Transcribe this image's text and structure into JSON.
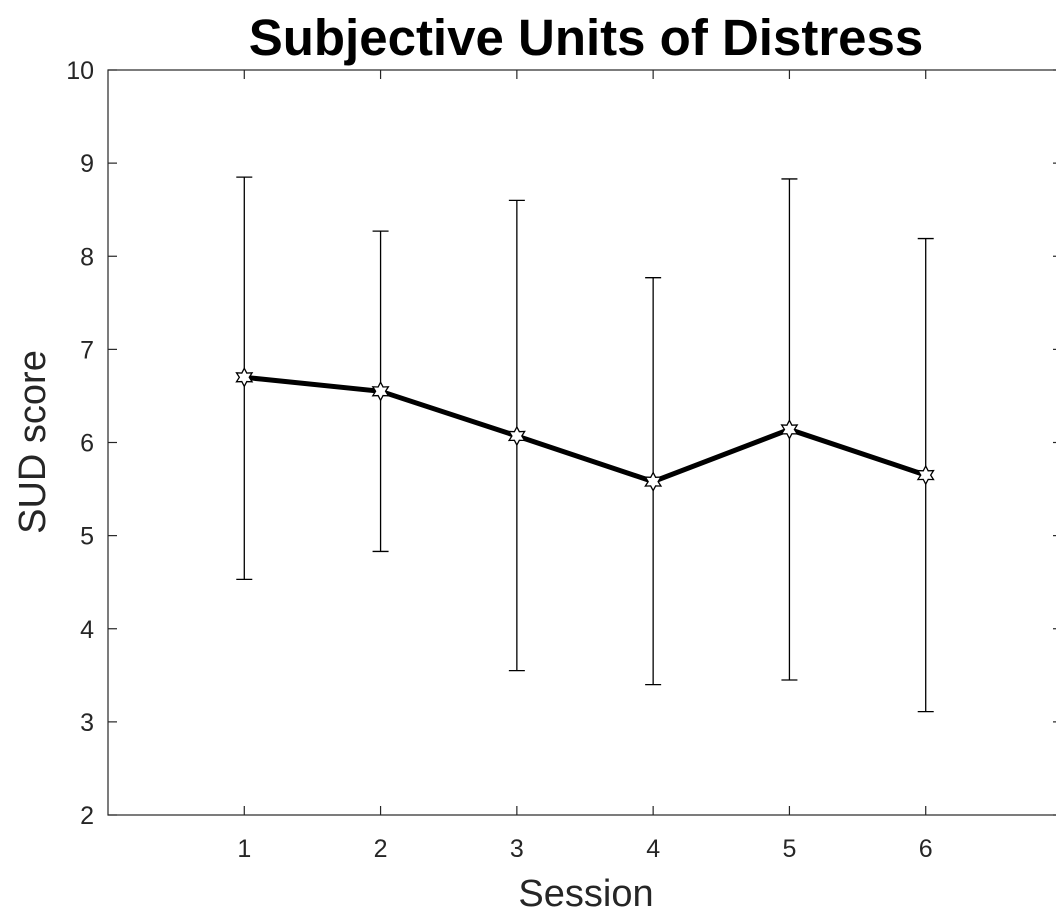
{
  "chart_data": {
    "type": "line",
    "title": "Subjective Units of Distress",
    "xlabel": "Session",
    "ylabel": "SUD score",
    "x": [
      1,
      2,
      3,
      4,
      5,
      6
    ],
    "xlim": [
      0,
      7
    ],
    "ylim": [
      2,
      10
    ],
    "xticks": [
      "1",
      "2",
      "3",
      "4",
      "5",
      "6"
    ],
    "yticks": [
      "2",
      "3",
      "4",
      "5",
      "6",
      "7",
      "8",
      "9",
      "10"
    ],
    "grid": false,
    "legend": "none",
    "series": [
      {
        "marker": "hexagram",
        "color": "#000000",
        "values": [
          6.7,
          6.55,
          6.07,
          5.58,
          6.14,
          5.65
        ],
        "error_lower": [
          4.53,
          4.83,
          3.55,
          3.4,
          3.45,
          3.11
        ],
        "error_upper": [
          8.85,
          8.27,
          8.6,
          7.77,
          8.83,
          8.19
        ]
      }
    ]
  }
}
